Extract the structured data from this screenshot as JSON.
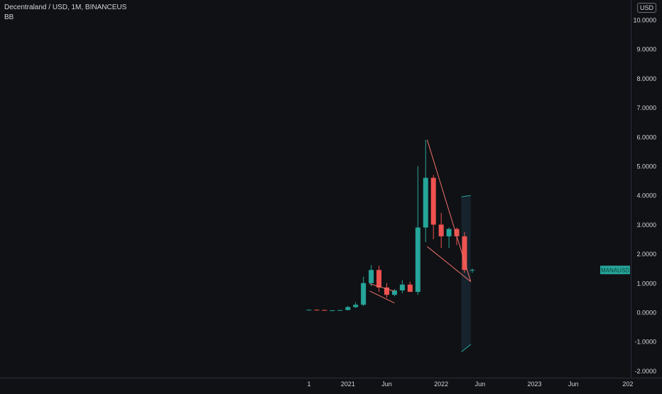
{
  "header": {
    "symbol_line": "Decentraland / USD, 1M, BINANCEUS",
    "indicator": "BB"
  },
  "currency_label": "USD",
  "price_tag": "MANAUSD",
  "colors": {
    "background": "#101114",
    "bull": "#26a69a",
    "bear": "#ef5350",
    "pattern_line": "#f0706a",
    "band_fill": "#1e3a4a",
    "axis_text": "#d1d4dc",
    "tag_bg": "#26a69a"
  },
  "chart_data": {
    "type": "candlestick",
    "title": "Decentraland / USD, 1M, BINANCEUS",
    "ylim": [
      -2,
      10.4
    ],
    "y_ticks": [
      "10.0000",
      "9.0000",
      "8.0000",
      "7.0000",
      "6.0000",
      "5.0000",
      "4.0000",
      "3.0000",
      "2.0000",
      "1.0000",
      "0.0000",
      "-1.0000",
      "-2.0000"
    ],
    "y_tick_values": [
      10,
      9,
      8,
      7,
      6,
      5,
      4,
      3,
      2,
      1,
      0,
      -1,
      -2
    ],
    "x_ticks": [
      {
        "label": "1",
        "index": 0
      },
      {
        "label": "2021",
        "index": 5
      },
      {
        "label": "Jun",
        "index": 10
      },
      {
        "label": "2022",
        "index": 17
      },
      {
        "label": "Jun",
        "index": 22
      },
      {
        "label": "2023",
        "index": 29
      },
      {
        "label": "Jun",
        "index": 34
      },
      {
        "label": "202",
        "index": 41
      }
    ],
    "candles": [
      {
        "o": 0.08,
        "h": 0.09,
        "l": 0.07,
        "c": 0.09
      },
      {
        "o": 0.09,
        "h": 0.1,
        "l": 0.07,
        "c": 0.08
      },
      {
        "o": 0.08,
        "h": 0.09,
        "l": 0.07,
        "c": 0.07
      },
      {
        "o": 0.07,
        "h": 0.08,
        "l": 0.06,
        "c": 0.07
      },
      {
        "o": 0.07,
        "h": 0.08,
        "l": 0.06,
        "c": 0.08
      },
      {
        "o": 0.08,
        "h": 0.22,
        "l": 0.07,
        "c": 0.18
      },
      {
        "o": 0.18,
        "h": 0.35,
        "l": 0.15,
        "c": 0.26
      },
      {
        "o": 0.26,
        "h": 1.22,
        "l": 0.22,
        "c": 1.0
      },
      {
        "o": 1.0,
        "h": 1.62,
        "l": 0.9,
        "c": 1.45
      },
      {
        "o": 1.45,
        "h": 1.6,
        "l": 0.7,
        "c": 0.85
      },
      {
        "o": 0.85,
        "h": 1.0,
        "l": 0.5,
        "c": 0.6
      },
      {
        "o": 0.6,
        "h": 0.8,
        "l": 0.55,
        "c": 0.75
      },
      {
        "o": 0.75,
        "h": 1.1,
        "l": 0.65,
        "c": 0.95
      },
      {
        "o": 0.95,
        "h": 1.05,
        "l": 0.75,
        "c": 0.7
      },
      {
        "o": 0.7,
        "h": 5.0,
        "l": 0.6,
        "c": 2.9
      },
      {
        "o": 2.9,
        "h": 5.9,
        "l": 2.4,
        "c": 4.6
      },
      {
        "o": 4.6,
        "h": 4.7,
        "l": 2.5,
        "c": 3.0
      },
      {
        "o": 3.0,
        "h": 3.4,
        "l": 2.2,
        "c": 2.6
      },
      {
        "o": 2.6,
        "h": 2.9,
        "l": 2.2,
        "c": 2.85
      },
      {
        "o": 2.85,
        "h": 2.9,
        "l": 2.3,
        "c": 2.6
      },
      {
        "o": 2.6,
        "h": 2.75,
        "l": 1.35,
        "c": 1.45
      },
      {
        "o": 1.45,
        "h": 1.5,
        "l": 1.35,
        "c": 1.45
      }
    ],
    "pattern_lines": [
      {
        "x1": 7.8,
        "y1": 0.98,
        "x2": 11.0,
        "y2": 0.72
      },
      {
        "x1": 7.8,
        "y1": 0.73,
        "x2": 11.0,
        "y2": 0.32
      },
      {
        "x1": 15.2,
        "y1": 5.9,
        "x2": 20.8,
        "y2": 1.05
      },
      {
        "x1": 15.2,
        "y1": 2.25,
        "x2": 20.8,
        "y2": 1.05
      }
    ],
    "bands": {
      "from_index": 19.6,
      "to_index": 20.8,
      "upper": [
        3.95,
        4.0
      ],
      "lower": [
        -1.35,
        -1.1
      ]
    },
    "last_price": 1.45
  }
}
